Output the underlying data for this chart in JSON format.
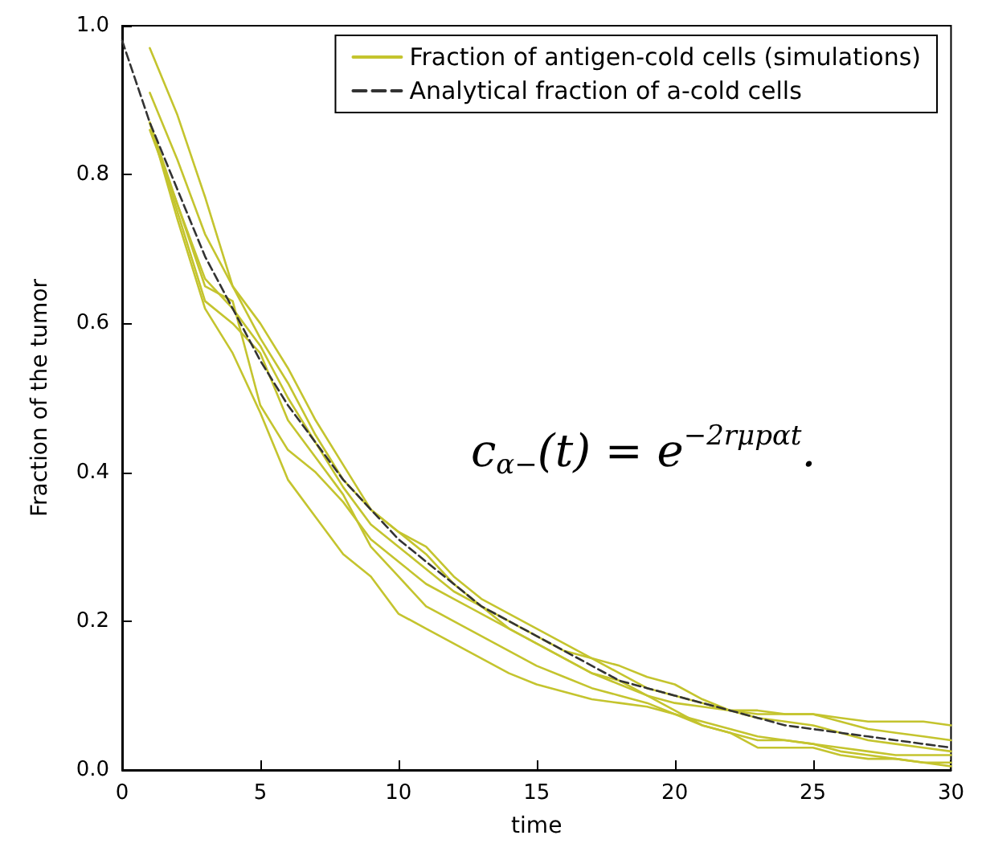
{
  "chart_data": {
    "type": "line",
    "xlabel": "time",
    "ylabel": "Fraction of the tumor",
    "xlim": [
      0,
      30
    ],
    "xticks": [
      0,
      5,
      10,
      15,
      20,
      25,
      30
    ],
    "ylim": [
      0,
      1
    ],
    "yticks": [
      {
        "value": 0,
        "label": "0.0"
      },
      {
        "value": 0.2,
        "label": "0.2"
      },
      {
        "value": 0.4,
        "label": "0.4"
      },
      {
        "value": 0.6,
        "label": "0.6"
      },
      {
        "value": 0.8,
        "label": "0.8"
      },
      {
        "value": 1,
        "label": "1.0"
      }
    ],
    "grid": false,
    "legend": "top right",
    "marker": "none",
    "annotations": [
      "c$_{α−}$(t) = e$^{−2rμpαt}$."
    ],
    "series": [
      {
        "name": "Fraction of antigen-cold cells (simulations)",
        "color": "#c4c42e",
        "line_style": "solid",
        "x": [
          1,
          2,
          3,
          4,
          5,
          6,
          7,
          8,
          9,
          10,
          11,
          12,
          13,
          14,
          15,
          16,
          17,
          18,
          19,
          20,
          21,
          22,
          23,
          24,
          25,
          26,
          27,
          28,
          29,
          30
        ],
        "values": [
          0.97,
          0.88,
          0.77,
          0.65,
          0.6,
          0.54,
          0.47,
          0.41,
          0.35,
          0.32,
          0.29,
          0.25,
          0.22,
          0.2,
          0.18,
          0.16,
          0.15,
          0.14,
          0.125,
          0.115,
          0.095,
          0.08,
          0.08,
          0.075,
          0.075,
          0.07,
          0.065,
          0.065,
          0.065,
          0.06
        ]
      },
      {
        "color": "#c4c42e",
        "line_style": "solid",
        "x": [
          1,
          2,
          3,
          4,
          5,
          6,
          7,
          8,
          9,
          10,
          11,
          12,
          13,
          14,
          15,
          16,
          17,
          18,
          19,
          20,
          21,
          22,
          23,
          24,
          25,
          26,
          27,
          28,
          29,
          30
        ],
        "values": [
          0.91,
          0.82,
          0.72,
          0.65,
          0.58,
          0.52,
          0.45,
          0.39,
          0.35,
          0.32,
          0.3,
          0.26,
          0.23,
          0.21,
          0.19,
          0.17,
          0.15,
          0.13,
          0.11,
          0.1,
          0.09,
          0.08,
          0.07,
          0.065,
          0.06,
          0.05,
          0.04,
          0.035,
          0.03,
          0.025
        ]
      },
      {
        "color": "#c4c42e",
        "line_style": "solid",
        "x": [
          1,
          2,
          3,
          4,
          5,
          6,
          7,
          8,
          9,
          10,
          11,
          12,
          13,
          14,
          15,
          16,
          17,
          18,
          19,
          20,
          21,
          22,
          23,
          24,
          25,
          26,
          27,
          28,
          29,
          30
        ],
        "values": [
          0.86,
          0.76,
          0.65,
          0.63,
          0.49,
          0.43,
          0.4,
          0.36,
          0.31,
          0.28,
          0.25,
          0.23,
          0.21,
          0.19,
          0.17,
          0.15,
          0.13,
          0.115,
          0.1,
          0.09,
          0.085,
          0.08,
          0.075,
          0.075,
          0.075,
          0.065,
          0.055,
          0.05,
          0.045,
          0.04
        ]
      },
      {
        "color": "#c4c42e",
        "line_style": "solid",
        "x": [
          1,
          2,
          3,
          4,
          5,
          6,
          7,
          8,
          9,
          10,
          11,
          12,
          13,
          14,
          15,
          16,
          17,
          18,
          19,
          20,
          21,
          22,
          23,
          24,
          25,
          26,
          27,
          28,
          29,
          30
        ],
        "values": [
          0.87,
          0.74,
          0.62,
          0.56,
          0.48,
          0.39,
          0.34,
          0.29,
          0.26,
          0.21,
          0.19,
          0.17,
          0.15,
          0.13,
          0.115,
          0.105,
          0.095,
          0.09,
          0.085,
          0.075,
          0.065,
          0.055,
          0.045,
          0.04,
          0.035,
          0.025,
          0.02,
          0.015,
          0.01,
          0.005
        ]
      },
      {
        "color": "#c4c42e",
        "line_style": "solid",
        "x": [
          1,
          2,
          3,
          4,
          5,
          6,
          7,
          8,
          9,
          10,
          11,
          12,
          13,
          14,
          15,
          16,
          17,
          18,
          19,
          20,
          21,
          22,
          23,
          24,
          25,
          26,
          27,
          28,
          29,
          30
        ],
        "values": [
          0.87,
          0.75,
          0.63,
          0.6,
          0.56,
          0.47,
          0.42,
          0.37,
          0.3,
          0.26,
          0.22,
          0.2,
          0.18,
          0.16,
          0.14,
          0.125,
          0.11,
          0.1,
          0.09,
          0.075,
          0.06,
          0.05,
          0.03,
          0.03,
          0.03,
          0.02,
          0.015,
          0.015,
          0.01,
          0.01
        ]
      },
      {
        "color": "#c4c42e",
        "line_style": "solid",
        "x": [
          1,
          2,
          3,
          4,
          5,
          6,
          7,
          8,
          9,
          10,
          11,
          12,
          13,
          14,
          15,
          16,
          17,
          18,
          19,
          20,
          21,
          22,
          23,
          24,
          25,
          26,
          27,
          28,
          29,
          30
        ],
        "values": [
          0.87,
          0.76,
          0.66,
          0.62,
          0.57,
          0.5,
          0.44,
          0.38,
          0.33,
          0.3,
          0.27,
          0.24,
          0.22,
          0.19,
          0.17,
          0.15,
          0.13,
          0.12,
          0.1,
          0.08,
          0.06,
          0.05,
          0.04,
          0.04,
          0.035,
          0.03,
          0.025,
          0.02,
          0.02,
          0.02
        ]
      },
      {
        "name": "Analytical fraction of a-cold cells",
        "color": "#333333",
        "line_style": "dashed",
        "x": [
          0,
          1,
          2,
          3,
          4,
          5,
          6,
          7,
          8,
          9,
          10,
          11,
          12,
          13,
          14,
          15,
          16,
          17,
          18,
          19,
          20,
          21,
          22,
          23,
          24,
          25,
          26,
          27,
          28,
          29,
          30
        ],
        "values": [
          0.98,
          0.87,
          0.78,
          0.69,
          0.62,
          0.55,
          0.49,
          0.44,
          0.39,
          0.35,
          0.31,
          0.28,
          0.25,
          0.22,
          0.2,
          0.18,
          0.16,
          0.14,
          0.12,
          0.11,
          0.1,
          0.09,
          0.08,
          0.07,
          0.06,
          0.055,
          0.05,
          0.045,
          0.04,
          0.035,
          0.03
        ]
      }
    ]
  }
}
